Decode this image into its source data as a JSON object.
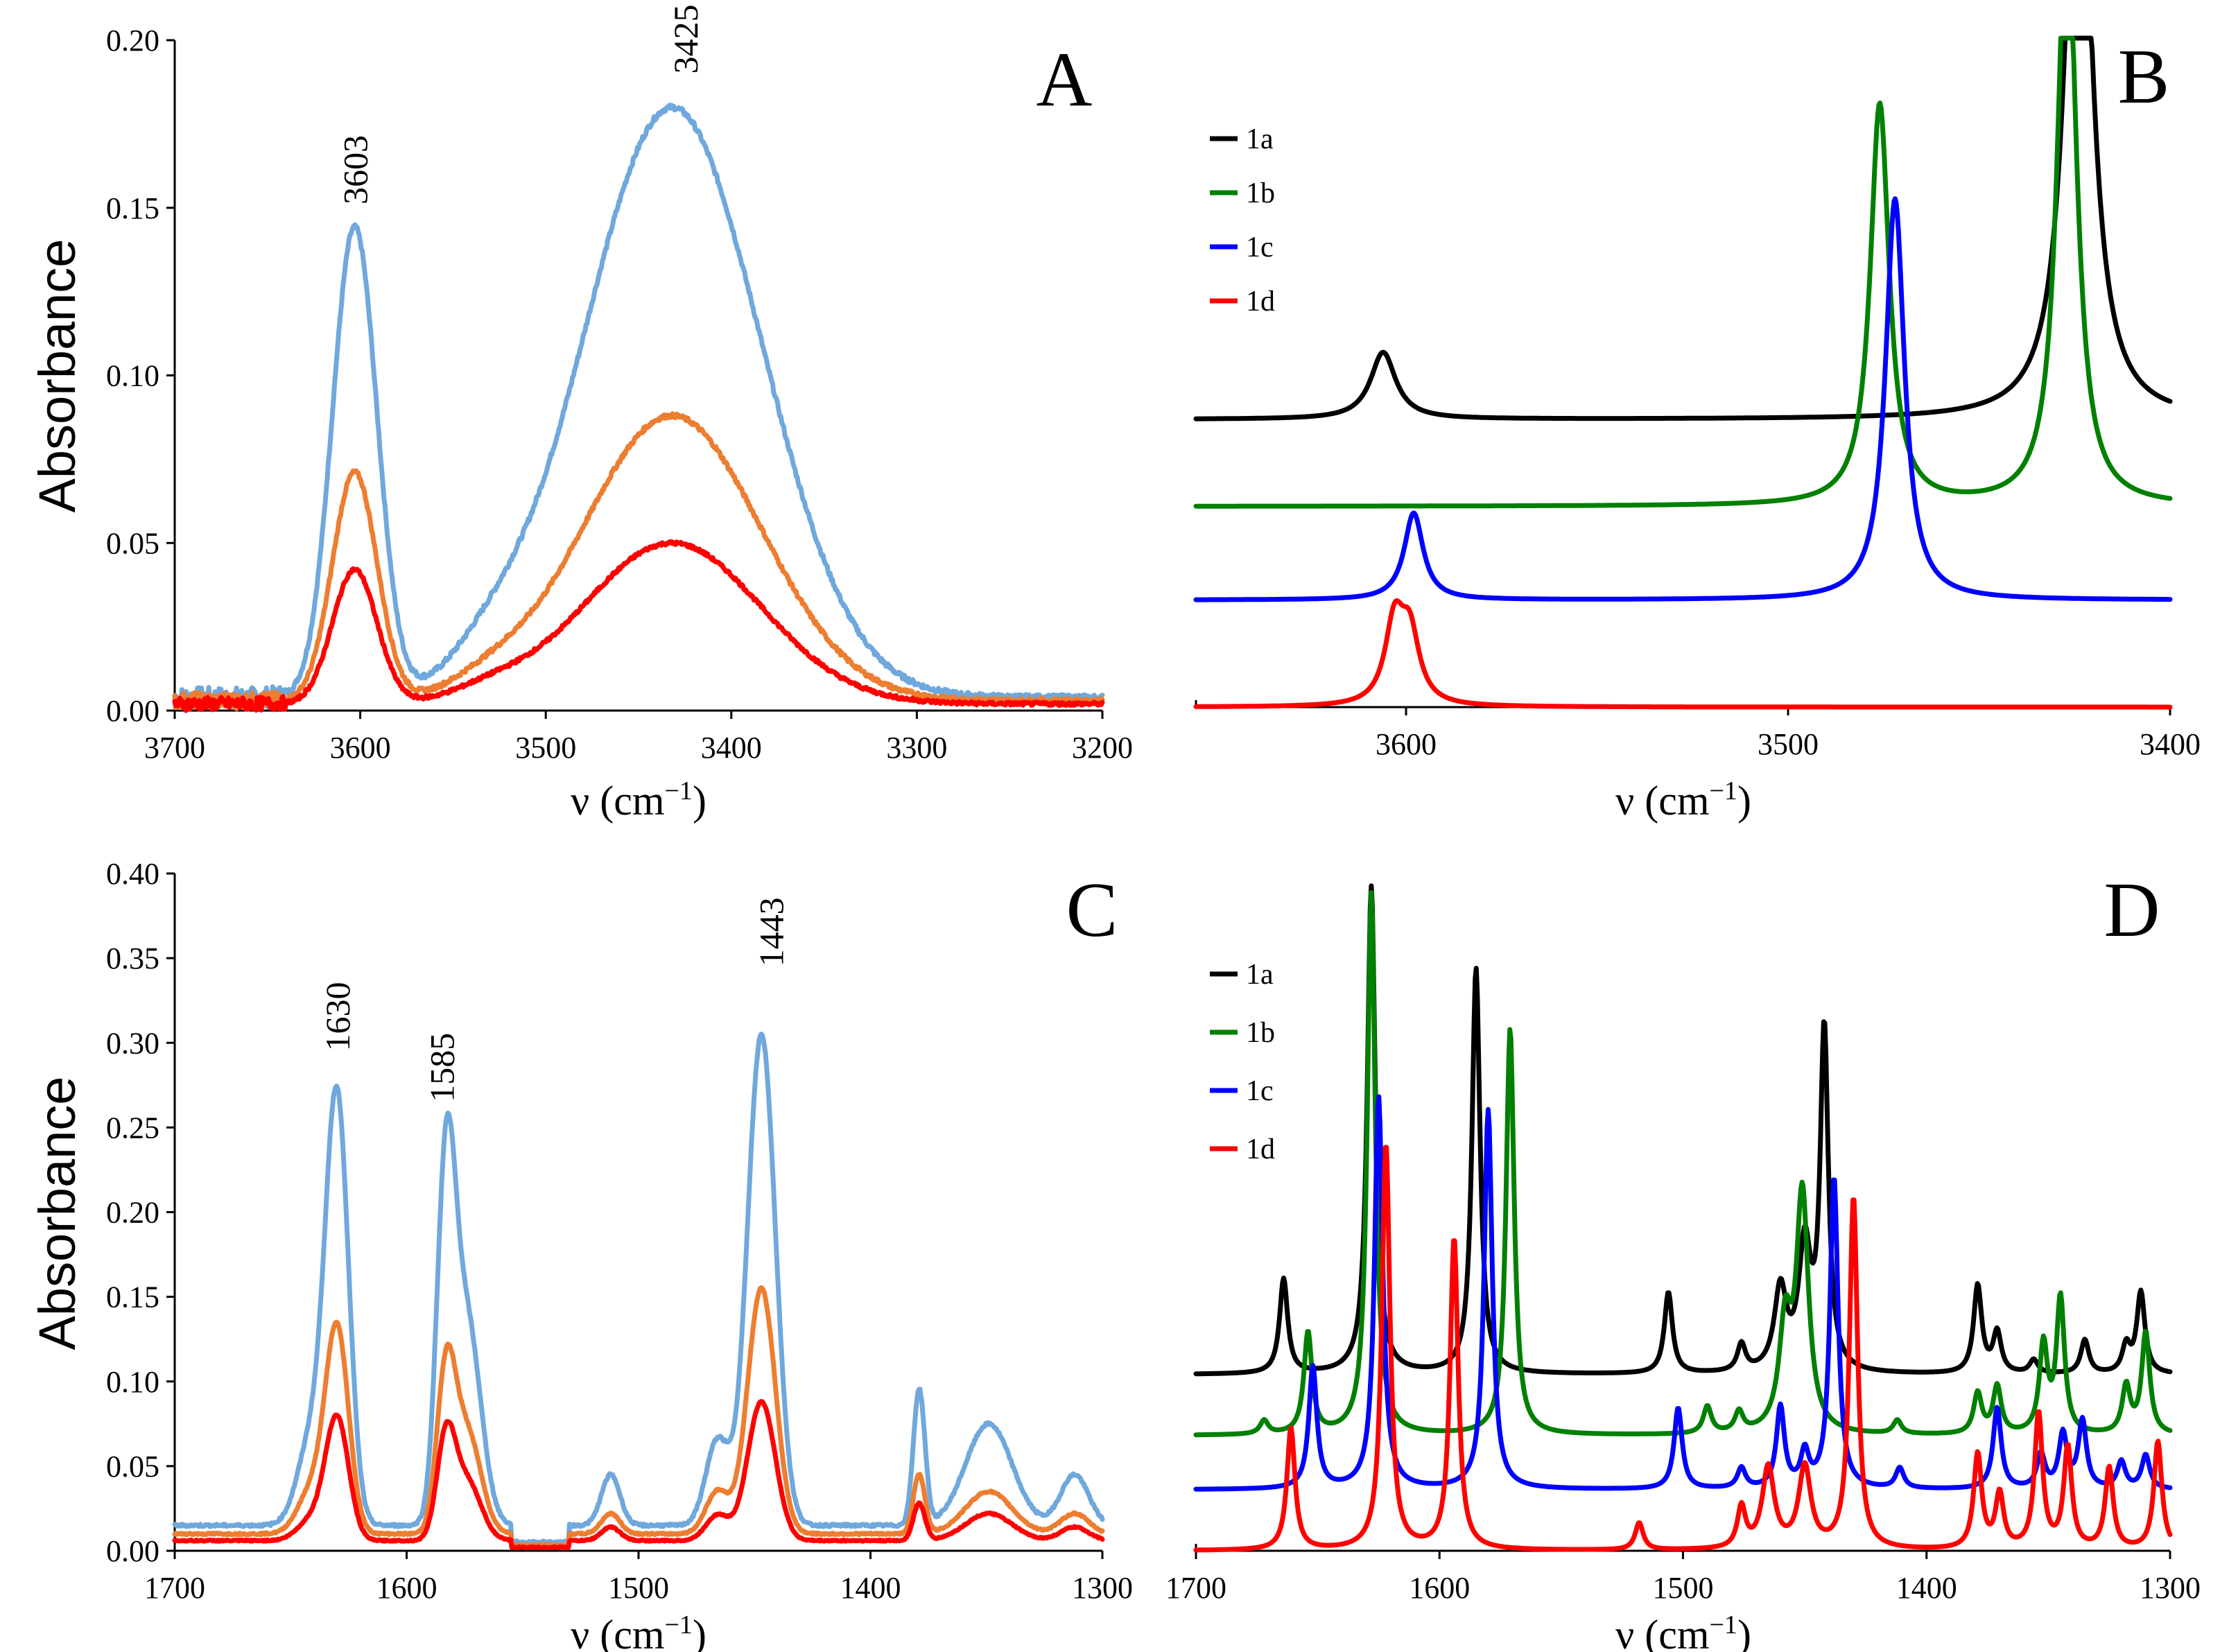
{
  "chart_data": [
    {
      "type": "line",
      "panel": "A",
      "title": "",
      "xlabel": "ν (cm",
      "xlabel_sup": "−1",
      "xlabel_end": ")",
      "ylabel": "Absorbance",
      "xlim": [
        3700,
        3200
      ],
      "ylim": [
        0,
        0.2
      ],
      "xticks": [
        3700,
        3600,
        3500,
        3400,
        3300,
        3200
      ],
      "xtick_labels": [
        "3700",
        "3600",
        "3500",
        "3400",
        "3300",
        "3200"
      ],
      "yticks": [
        0,
        0.05,
        0.1,
        0.15,
        0.2
      ],
      "ytick_labels": [
        "0.00",
        "0.05",
        "0.10",
        "0.15",
        "0.20"
      ],
      "peak_labels": [
        {
          "text": "3603",
          "x": 3603,
          "y": 0.151
        },
        {
          "text": "3425",
          "x": 3425,
          "y": 0.19
        }
      ],
      "series": [
        {
          "name": "blue",
          "color": "#6fa8dc",
          "base": 0.004,
          "peaks": [
            {
              "c": 3603,
              "h": 0.14,
              "w": 12
            },
            {
              "c": 3432,
              "h": 0.176,
              "w": 48
            },
            {
              "c": 3530,
              "h": 0.008,
              "w": 20
            }
          ],
          "noise": 0.003
        },
        {
          "name": "orange",
          "color": "#ed7d31",
          "base": 0.003,
          "peaks": [
            {
              "c": 3603,
              "h": 0.068,
              "w": 12
            },
            {
              "c": 3432,
              "h": 0.085,
              "w": 48
            },
            {
              "c": 3530,
              "h": 0.004,
              "w": 20
            }
          ],
          "noise": 0.0025
        },
        {
          "name": "red",
          "color": "#ff0000",
          "base": 0.002,
          "peaks": [
            {
              "c": 3603,
              "h": 0.04,
              "w": 12
            },
            {
              "c": 3432,
              "h": 0.048,
              "w": 48
            },
            {
              "c": 3530,
              "h": 0.003,
              "w": 20
            }
          ],
          "noise": 0.002
        }
      ]
    },
    {
      "type": "line",
      "panel": "B",
      "title": "",
      "xlabel": "ν (cm",
      "xlabel_sup": "−1",
      "xlabel_end": ")",
      "ylabel": "",
      "xlim": [
        3655,
        3400
      ],
      "ylim": [
        0,
        1
      ],
      "xticks": [
        3600,
        3500,
        3400
      ],
      "xtick_labels": [
        "3600",
        "3500",
        "3400"
      ],
      "legend": [
        "1a",
        "1b",
        "1c",
        "1d"
      ],
      "series": [
        {
          "name": "1a",
          "color": "#000000",
          "base": 0.43,
          "peaks": [
            {
              "c": 3606,
              "h": 0.1,
              "w": 4
            },
            {
              "c": 3424,
              "h": 1.0,
              "w": 4
            }
          ]
        },
        {
          "name": "1b",
          "color": "#008000",
          "base": 0.3,
          "peaks": [
            {
              "c": 3476,
              "h": 0.6,
              "w": 3
            },
            {
              "c": 3427,
              "h": 0.9,
              "w": 3
            }
          ]
        },
        {
          "name": "1c",
          "color": "#0000ff",
          "base": 0.16,
          "peaks": [
            {
              "c": 3598,
              "h": 0.13,
              "w": 3
            },
            {
              "c": 3472,
              "h": 0.6,
              "w": 3
            }
          ]
        },
        {
          "name": "1d",
          "color": "#ff0000",
          "base": 0.0,
          "peaks": [
            {
              "c": 3603,
              "h": 0.12,
              "w": 3
            },
            {
              "c": 3599,
              "h": 0.1,
              "w": 3
            }
          ]
        }
      ]
    },
    {
      "type": "line",
      "panel": "C",
      "title": "",
      "xlabel": "ν (cm",
      "xlabel_sup": "−1",
      "xlabel_end": ")",
      "ylabel": "Absorbance",
      "xlim": [
        1700,
        1300
      ],
      "ylim": [
        0,
        0.4
      ],
      "xticks": [
        1700,
        1600,
        1500,
        1400,
        1300
      ],
      "xtick_labels": [
        "1700",
        "1600",
        "1500",
        "1400",
        "1300"
      ],
      "yticks": [
        0,
        0.05,
        0.1,
        0.15,
        0.2,
        0.25,
        0.3,
        0.35,
        0.4
      ],
      "ytick_labels": [
        "0.00",
        "0.05",
        "0.10",
        "0.15",
        "0.20",
        "0.25",
        "0.30",
        "0.35",
        "0.40"
      ],
      "peak_labels": [
        {
          "text": "1630",
          "x": 1630,
          "y": 0.295
        },
        {
          "text": "1585",
          "x": 1585,
          "y": 0.265
        },
        {
          "text": "1443",
          "x": 1443,
          "y": 0.345
        }
      ],
      "series": [
        {
          "name": "blue",
          "color": "#6fa8dc",
          "base": 0.015,
          "peaks": [
            {
              "c": 1630,
              "h": 0.25,
              "w": 5
            },
            {
              "c": 1641,
              "h": 0.05,
              "w": 6
            },
            {
              "c": 1583,
              "h": 0.2,
              "w": 4
            },
            {
              "c": 1574,
              "h": 0.12,
              "w": 6
            },
            {
              "c": 1512,
              "h": 0.03,
              "w": 4
            },
            {
              "c": 1447,
              "h": 0.29,
              "w": 6
            },
            {
              "c": 1466,
              "h": 0.05,
              "w": 5
            },
            {
              "c": 1379,
              "h": 0.08,
              "w": 2.5
            },
            {
              "c": 1349,
              "h": 0.06,
              "w": 10
            },
            {
              "c": 1312,
              "h": 0.03,
              "w": 6
            }
          ],
          "noise": 0.003
        },
        {
          "name": "orange",
          "color": "#ed7d31",
          "base": 0.01,
          "peaks": [
            {
              "c": 1630,
              "h": 0.12,
              "w": 5
            },
            {
              "c": 1641,
              "h": 0.025,
              "w": 6
            },
            {
              "c": 1583,
              "h": 0.09,
              "w": 4
            },
            {
              "c": 1574,
              "h": 0.06,
              "w": 6
            },
            {
              "c": 1512,
              "h": 0.012,
              "w": 4
            },
            {
              "c": 1447,
              "h": 0.145,
              "w": 6
            },
            {
              "c": 1466,
              "h": 0.025,
              "w": 5
            },
            {
              "c": 1379,
              "h": 0.035,
              "w": 2.5
            },
            {
              "c": 1349,
              "h": 0.025,
              "w": 10
            },
            {
              "c": 1312,
              "h": 0.012,
              "w": 6
            }
          ],
          "noise": 0.002
        },
        {
          "name": "red",
          "color": "#ff0000",
          "base": 0.006,
          "peaks": [
            {
              "c": 1630,
              "h": 0.072,
              "w": 5
            },
            {
              "c": 1641,
              "h": 0.012,
              "w": 6
            },
            {
              "c": 1583,
              "h": 0.058,
              "w": 4
            },
            {
              "c": 1574,
              "h": 0.035,
              "w": 6
            },
            {
              "c": 1512,
              "h": 0.008,
              "w": 4
            },
            {
              "c": 1447,
              "h": 0.082,
              "w": 6
            },
            {
              "c": 1466,
              "h": 0.015,
              "w": 5
            },
            {
              "c": 1379,
              "h": 0.022,
              "w": 2.5
            },
            {
              "c": 1349,
              "h": 0.016,
              "w": 10
            },
            {
              "c": 1312,
              "h": 0.008,
              "w": 6
            }
          ],
          "noise": 0.0015
        }
      ]
    },
    {
      "type": "line",
      "panel": "D",
      "title": "",
      "xlabel": "ν (cm",
      "xlabel_sup": "−1",
      "xlabel_end": ")",
      "ylabel": "",
      "xlim": [
        1700,
        1300
      ],
      "ylim": [
        0,
        1
      ],
      "xticks": [
        1700,
        1600,
        1500,
        1400,
        1300
      ],
      "xtick_labels": [
        "1700",
        "1600",
        "1500",
        "1400",
        "1300"
      ],
      "legend": [
        "1a",
        "1b",
        "1c",
        "1d"
      ],
      "series": [
        {
          "name": "1a",
          "color": "#000000",
          "base": 0.26,
          "peaks": [
            {
              "c": 1664,
              "h": 0.14,
              "w": 2
            },
            {
              "c": 1628,
              "h": 0.72,
              "w": 2
            },
            {
              "c": 1585,
              "h": 0.6,
              "w": 2
            },
            {
              "c": 1506,
              "h": 0.12,
              "w": 2
            },
            {
              "c": 1476,
              "h": 0.04,
              "w": 2
            },
            {
              "c": 1460,
              "h": 0.12,
              "w": 3
            },
            {
              "c": 1450,
              "h": 0.18,
              "w": 3
            },
            {
              "c": 1442,
              "h": 0.5,
              "w": 2
            },
            {
              "c": 1379,
              "h": 0.13,
              "w": 2
            },
            {
              "c": 1371,
              "h": 0.06,
              "w": 2
            },
            {
              "c": 1356,
              "h": 0.02,
              "w": 2
            },
            {
              "c": 1335,
              "h": 0.05,
              "w": 2
            },
            {
              "c": 1312,
              "h": 0.12,
              "w": 2
            },
            {
              "c": 1318,
              "h": 0.04,
              "w": 2
            }
          ]
        },
        {
          "name": "1b",
          "color": "#008000",
          "base": 0.17,
          "peaks": [
            {
              "c": 1654,
              "h": 0.15,
              "w": 2
            },
            {
              "c": 1628,
              "h": 0.8,
              "w": 2
            },
            {
              "c": 1571,
              "h": 0.6,
              "w": 2
            },
            {
              "c": 1490,
              "h": 0.04,
              "w": 2
            },
            {
              "c": 1477,
              "h": 0.03,
              "w": 2
            },
            {
              "c": 1458,
              "h": 0.15,
              "w": 3
            },
            {
              "c": 1451,
              "h": 0.35,
              "w": 3
            },
            {
              "c": 1412,
              "h": 0.02,
              "w": 2
            },
            {
              "c": 1379,
              "h": 0.06,
              "w": 2
            },
            {
              "c": 1371,
              "h": 0.07,
              "w": 2
            },
            {
              "c": 1352,
              "h": 0.13,
              "w": 2
            },
            {
              "c": 1345,
              "h": 0.2,
              "w": 2
            },
            {
              "c": 1318,
              "h": 0.07,
              "w": 2
            },
            {
              "c": 1310,
              "h": 0.15,
              "w": 2
            },
            {
              "c": 1672,
              "h": 0.02,
              "w": 2
            }
          ]
        },
        {
          "name": "1c",
          "color": "#0000ff",
          "base": 0.09,
          "peaks": [
            {
              "c": 1652,
              "h": 0.18,
              "w": 2
            },
            {
              "c": 1625,
              "h": 0.58,
              "w": 2
            },
            {
              "c": 1580,
              "h": 0.56,
              "w": 2
            },
            {
              "c": 1502,
              "h": 0.12,
              "w": 2
            },
            {
              "c": 1476,
              "h": 0.03,
              "w": 2
            },
            {
              "c": 1460,
              "h": 0.12,
              "w": 2
            },
            {
              "c": 1450,
              "h": 0.05,
              "w": 2
            },
            {
              "c": 1438,
              "h": 0.46,
              "w": 2
            },
            {
              "c": 1411,
              "h": 0.03,
              "w": 2
            },
            {
              "c": 1371,
              "h": 0.12,
              "w": 2
            },
            {
              "c": 1353,
              "h": 0.05,
              "w": 2
            },
            {
              "c": 1344,
              "h": 0.08,
              "w": 2
            },
            {
              "c": 1336,
              "h": 0.1,
              "w": 2
            },
            {
              "c": 1320,
              "h": 0.04,
              "w": 2
            },
            {
              "c": 1310,
              "h": 0.05,
              "w": 2
            }
          ]
        },
        {
          "name": "1d",
          "color": "#ff0000",
          "base": 0.0,
          "peaks": [
            {
              "c": 1661,
              "h": 0.18,
              "w": 2
            },
            {
              "c": 1622,
              "h": 0.6,
              "w": 2
            },
            {
              "c": 1594,
              "h": 0.46,
              "w": 2
            },
            {
              "c": 1518,
              "h": 0.04,
              "w": 2
            },
            {
              "c": 1476,
              "h": 0.06,
              "w": 2
            },
            {
              "c": 1465,
              "h": 0.12,
              "w": 3
            },
            {
              "c": 1450,
              "h": 0.12,
              "w": 3
            },
            {
              "c": 1430,
              "h": 0.52,
              "w": 2
            },
            {
              "c": 1379,
              "h": 0.14,
              "w": 2
            },
            {
              "c": 1370,
              "h": 0.08,
              "w": 2
            },
            {
              "c": 1354,
              "h": 0.2,
              "w": 2
            },
            {
              "c": 1342,
              "h": 0.15,
              "w": 2
            },
            {
              "c": 1325,
              "h": 0.12,
              "w": 2
            },
            {
              "c": 1305,
              "h": 0.16,
              "w": 2
            }
          ]
        }
      ]
    }
  ]
}
